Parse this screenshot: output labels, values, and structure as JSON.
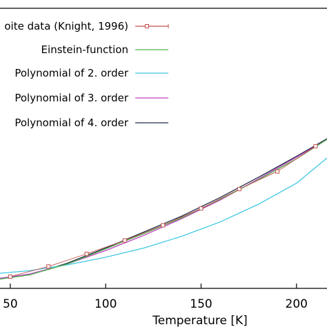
{
  "chart_data": {
    "type": "line",
    "xlabel": "Temperature [K]",
    "ylabel": "",
    "xlim": [
      44.6,
      216.0
    ],
    "ylim": [
      0.86,
      4.19
    ],
    "x_ticks": [
      50,
      100,
      150,
      200
    ],
    "x_tick_labels": [
      "50",
      "100",
      "150",
      "200"
    ],
    "grid": false,
    "legend": "top-right",
    "series": [
      {
        "name": "oite data (Knight, 1996)",
        "style": "markers-with-line",
        "marker": "square",
        "color": "#c0504d",
        "x": [
          50,
          70,
          90,
          110,
          130,
          150,
          170,
          190,
          210
        ],
        "y": [
          1.0,
          1.12,
          1.27,
          1.43,
          1.61,
          1.81,
          2.04,
          2.25,
          2.55
        ]
      },
      {
        "name": "Einstein-function",
        "style": "line",
        "color": "#4db84d",
        "x": [
          44.6,
          60,
          80,
          100,
          120,
          140,
          160,
          180,
          200,
          216
        ],
        "y": [
          0.97,
          1.02,
          1.15,
          1.33,
          1.51,
          1.7,
          1.92,
          2.15,
          2.4,
          2.63
        ]
      },
      {
        "name": "Polynomial of 2. order",
        "style": "line",
        "color": "#3fc8e4",
        "x": [
          44.6,
          60,
          80,
          100,
          120,
          140,
          160,
          180,
          200,
          216
        ],
        "y": [
          1.04,
          1.07,
          1.14,
          1.23,
          1.34,
          1.48,
          1.65,
          1.86,
          2.11,
          2.41
        ]
      },
      {
        "name": "Polynomial of 3. order",
        "style": "line",
        "color": "#c040c0",
        "x": [
          44.6,
          60,
          80,
          100,
          120,
          140,
          160,
          180,
          200,
          216
        ],
        "y": [
          0.98,
          1.03,
          1.15,
          1.31,
          1.49,
          1.69,
          1.91,
          2.16,
          2.42,
          2.63
        ]
      },
      {
        "name": "Polynomial of 4. order",
        "style": "line",
        "color": "#1f2a44",
        "x": [
          44.6,
          60,
          80,
          100,
          120,
          140,
          160,
          180,
          200,
          216
        ],
        "y": [
          0.98,
          1.02,
          1.16,
          1.34,
          1.53,
          1.72,
          1.94,
          2.18,
          2.43,
          2.64
        ]
      }
    ]
  }
}
